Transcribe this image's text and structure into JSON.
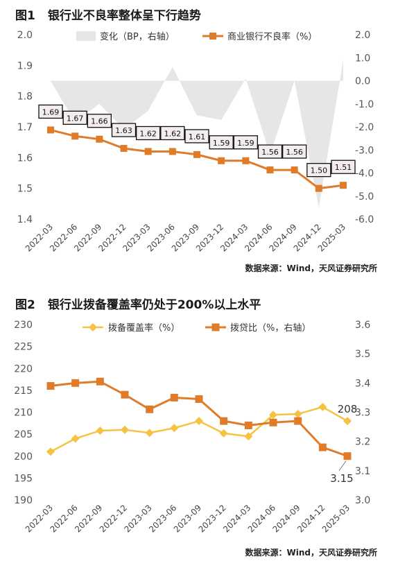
{
  "charts": [
    {
      "fig_no": "图1",
      "fig_title": "银行业不良率整体呈下行趋势",
      "source": "数据来源：Wind，天风证券研究所"
    },
    {
      "fig_no": "图2",
      "fig_title": "银行业拨备覆盖率仍处于200%以上水平",
      "source": "数据来源：Wind，天风证券研究所"
    }
  ],
  "chart_data": [
    {
      "type": "line",
      "categories": [
        "2022-03",
        "2022-06",
        "2022-09",
        "2022-12",
        "2023-03",
        "2023-06",
        "2023-09",
        "2023-12",
        "2024-03",
        "2024-06",
        "2024-09",
        "2024-12",
        "2025-03"
      ],
      "series": [
        {
          "name": "变化（BP，右轴）",
          "type": "area",
          "axis": "right",
          "color": "#e6e6e6",
          "values": [
            0,
            -1.8,
            -1,
            -2.1,
            -1.3,
            0.6,
            -1.5,
            -1.7,
            0.1,
            -3.2,
            0,
            -5.5,
            0.9
          ]
        },
        {
          "name": "商业银行不良率（%）",
          "type": "line",
          "axis": "left",
          "color": "#e07b2a",
          "values": [
            1.69,
            1.67,
            1.66,
            1.63,
            1.62,
            1.62,
            1.61,
            1.59,
            1.59,
            1.56,
            1.56,
            1.5,
            1.51
          ],
          "labels": [
            "1.69",
            "1.67",
            "1.66",
            "1.63",
            "1.62",
            "1.62",
            "1.61",
            "1.59",
            "1.59",
            "1.56",
            "1.56",
            "1.50",
            "1.51"
          ]
        }
      ],
      "left_axis": {
        "ylim": [
          1.4,
          2.0
        ],
        "ticks": [
          "1.4",
          "1.5",
          "1.6",
          "1.7",
          "1.8",
          "1.9",
          "2.0"
        ]
      },
      "right_axis": {
        "ylim": [
          -6.0,
          2.0
        ],
        "ticks": [
          "-6.0",
          "-5.0",
          "-4.0",
          "-3.0",
          "-2.0",
          "-1.0",
          "0.0",
          "1.0",
          "2.0"
        ]
      },
      "legend_position": "top",
      "grid": false
    },
    {
      "type": "line",
      "categories": [
        "2022-03",
        "2022-06",
        "2022-09",
        "2022-12",
        "2023-03",
        "2023-06",
        "2023-09",
        "2023-12",
        "2024-03",
        "2024-06",
        "2024-09",
        "2024-12",
        "2025-03"
      ],
      "series": [
        {
          "name": "拨备覆盖率（%）",
          "axis": "left",
          "color": "#f5c242",
          "marker": "diamond",
          "values": [
            201,
            204,
            205.8,
            206,
            205.3,
            206.4,
            208,
            205.2,
            204.5,
            209.4,
            209.6,
            211.2,
            208
          ]
        },
        {
          "name": "拨贷比（%，右轴）",
          "axis": "right",
          "color": "#e07b2a",
          "marker": "square",
          "values": [
            3.39,
            3.4,
            3.405,
            3.36,
            3.31,
            3.35,
            3.345,
            3.27,
            3.255,
            3.265,
            3.27,
            3.18,
            3.15
          ]
        }
      ],
      "annotations": [
        {
          "series": 0,
          "index": 12,
          "text": "208"
        },
        {
          "series": 1,
          "index": 12,
          "text": "3.15"
        }
      ],
      "left_axis": {
        "ylim": [
          190,
          230
        ],
        "ticks": [
          "190",
          "195",
          "200",
          "205",
          "210",
          "215",
          "220",
          "225",
          "230"
        ]
      },
      "right_axis": {
        "ylim": [
          3.0,
          3.6
        ],
        "ticks": [
          "3.0",
          "3.1",
          "3.2",
          "3.3",
          "3.4",
          "3.5",
          "3.6"
        ]
      },
      "legend_position": "top",
      "grid": false
    }
  ]
}
